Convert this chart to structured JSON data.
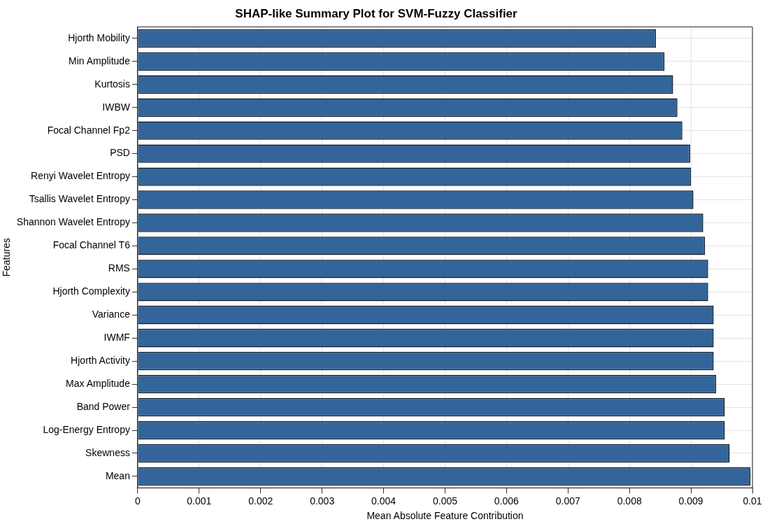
{
  "chart_data": {
    "type": "bar",
    "orientation": "horizontal",
    "title": "SHAP-like Summary Plot for SVM-Fuzzy Classifier",
    "xlabel": "Mean Absolute Feature Contribution",
    "ylabel": "Features",
    "categories": [
      "Hjorth Mobility",
      "Min Amplitude",
      "Kurtosis",
      "IWBW",
      "Focal Channel Fp2",
      "PSD",
      "Renyi Wavelet Entropy",
      "Tsallis Wavelet Entropy",
      "Shannon Wavelet Entropy",
      "Focal Channel T6",
      "RMS",
      "Hjorth Complexity",
      "Variance",
      "IWMF",
      "Hjorth Activity",
      "Max Amplitude",
      "Band Power",
      "Log-Energy Entropy",
      "Skewness",
      "Mean"
    ],
    "values": [
      0.00843,
      0.00857,
      0.00871,
      0.00878,
      0.00886,
      0.00899,
      0.009,
      0.00904,
      0.0092,
      0.00923,
      0.00928,
      0.00928,
      0.00937,
      0.00937,
      0.00937,
      0.00941,
      0.00955,
      0.00955,
      0.00963,
      0.00997
    ],
    "color": "#33659a",
    "xlim": [
      0,
      0.01
    ],
    "xticks": [
      0,
      0.001,
      0.002,
      0.003,
      0.004,
      0.005,
      0.006,
      0.007,
      0.008,
      0.009,
      0.01
    ],
    "grid": true
  }
}
